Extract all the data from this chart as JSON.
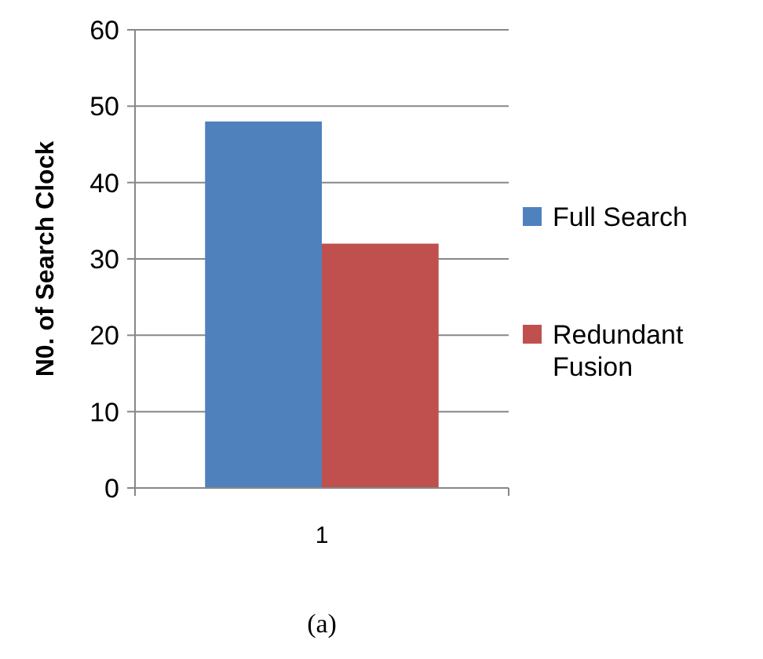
{
  "chart_data": {
    "type": "bar",
    "categories": [
      "1"
    ],
    "series": [
      {
        "name": "Full Search",
        "color": "#4f81bd",
        "values": [
          48
        ]
      },
      {
        "name": "Redundant Fusion",
        "color": "#c0504d",
        "values": [
          32
        ]
      }
    ],
    "ylabel": "N0. of Search Clock",
    "ylim": [
      0,
      60
    ],
    "yticks": [
      0,
      10,
      20,
      30,
      40,
      50,
      60
    ],
    "grid": "y",
    "legend": "right",
    "annotations": [
      "(a)"
    ]
  }
}
